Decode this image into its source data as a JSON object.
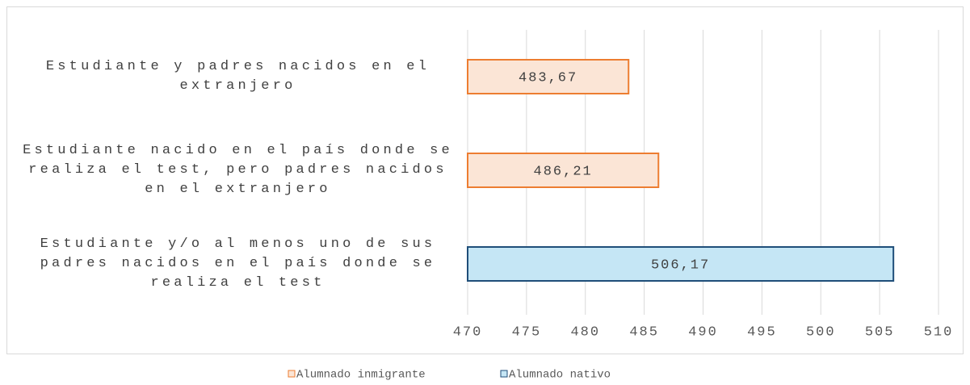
{
  "chart_data": {
    "type": "bar",
    "orientation": "horizontal",
    "categories": [
      "Estudiante y padres nacidos en el extranjero",
      "Estudiante nacido en el país donde se realiza el test, pero padres nacidos en el extranjero",
      "Estudiante y/o al menos uno de sus padres nacidos en el país donde se realiza el test"
    ],
    "series": [
      {
        "name": "Alumnado inmigrante",
        "color": "#fbe5d6",
        "edge_color": "#ed7d31",
        "values": [
          483.67,
          486.21,
          null
        ],
        "value_labels": [
          "483,67",
          "486,21",
          null
        ]
      },
      {
        "name": "Alumnado nativo",
        "color": "#c5e6f5",
        "edge_color": "#1f4e79",
        "values": [
          null,
          null,
          506.17
        ],
        "value_labels": [
          null,
          null,
          "506,17"
        ]
      }
    ],
    "xlim": [
      470,
      510
    ],
    "xticks": [
      470,
      475,
      480,
      485,
      490,
      495,
      500,
      505,
      510
    ],
    "grid": true,
    "legend": "bottom"
  }
}
